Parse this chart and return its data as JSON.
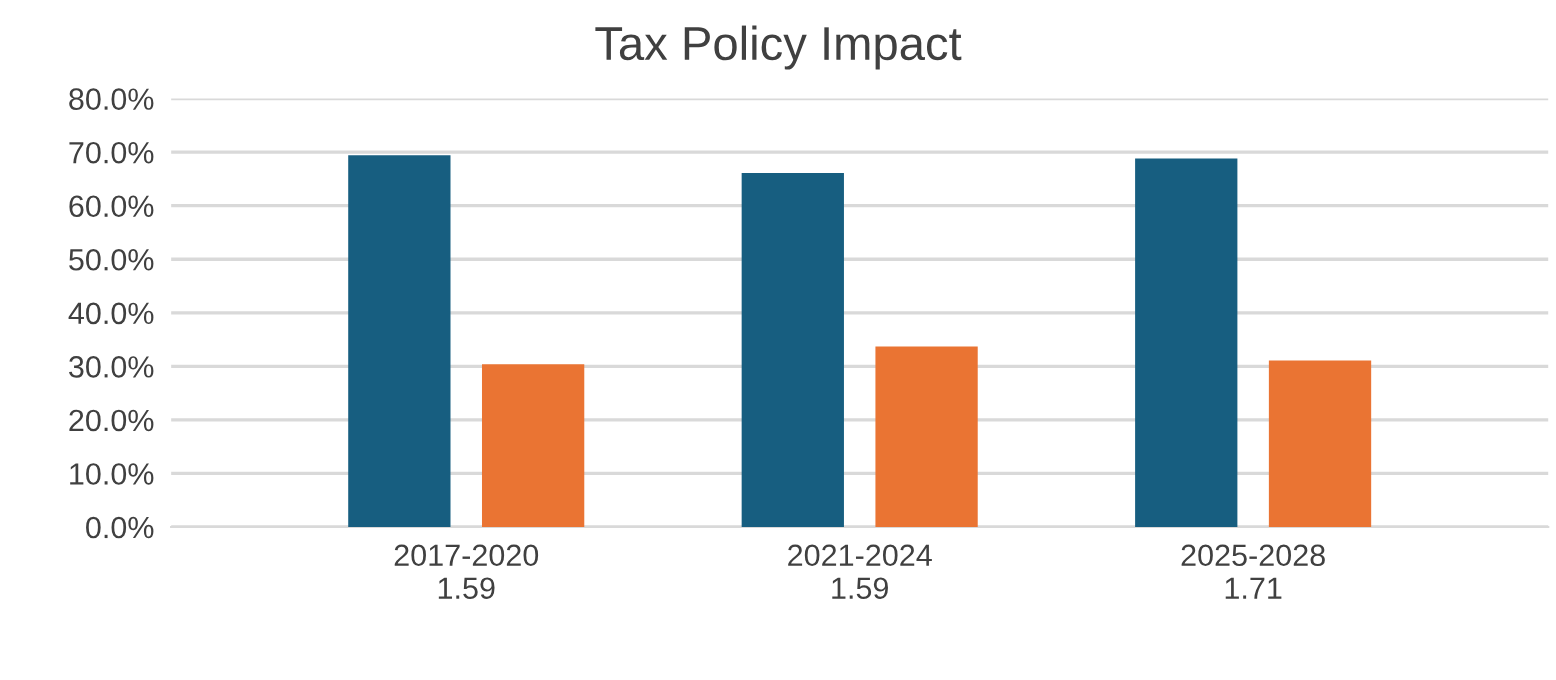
{
  "chart_data": {
    "type": "bar",
    "title": "Tax Policy Impact",
    "categories": [
      "2017-2020\n1.59",
      "2021-2024\n1.59",
      "2025-2028\n1.71"
    ],
    "series": [
      {
        "color": "#175e80",
        "values": [
          69.4,
          66.1,
          68.8
        ]
      },
      {
        "color": "#ea7433",
        "values": [
          30.4,
          33.7,
          31.1
        ]
      }
    ],
    "ylim": [
      0,
      80
    ],
    "yticks": [
      {
        "value": 0,
        "label": "0.0%"
      },
      {
        "value": 10,
        "label": "10.0%"
      },
      {
        "value": 20,
        "label": "20.0%"
      },
      {
        "value": 30,
        "label": "30.0%"
      },
      {
        "value": 40,
        "label": "40.0%"
      },
      {
        "value": 50,
        "label": "50.0%"
      },
      {
        "value": 60,
        "label": "60.0%"
      },
      {
        "value": 70,
        "label": "70.0%"
      },
      {
        "value": 80,
        "label": "80.0%"
      }
    ],
    "grid": "y"
  }
}
